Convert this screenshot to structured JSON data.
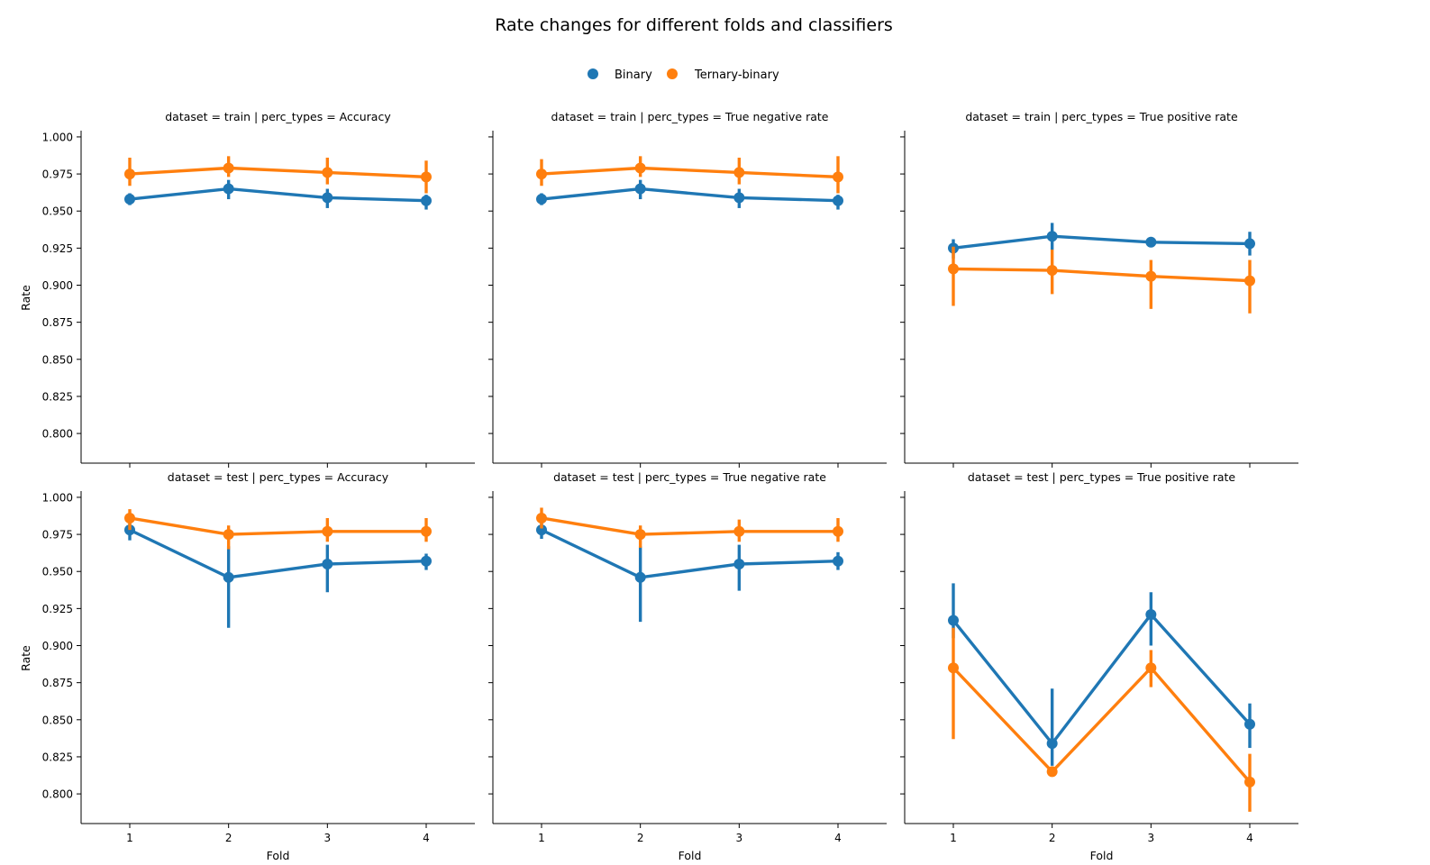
{
  "chart_data": {
    "type": "line",
    "title": "Rate changes for different folds and classifiers",
    "legend": {
      "placement": "top-center",
      "entries": [
        {
          "name": "Binary",
          "color": "#1f77b4"
        },
        {
          "name": "Ternary-binary",
          "color": "#ff7f0e"
        }
      ]
    },
    "xlabel": "Fold",
    "ylabel": "Rate",
    "x_ticks": [
      "1",
      "2",
      "3",
      "4"
    ],
    "y_ticks": [
      "0.800",
      "0.825",
      "0.850",
      "0.875",
      "0.900",
      "0.925",
      "0.950",
      "0.975",
      "1.000"
    ],
    "ylim": [
      0.78,
      1.003
    ],
    "grid": false,
    "panels": [
      {
        "title": "dataset = train | perc_types = Accuracy",
        "series": [
          {
            "name": "Binary",
            "values": [
              0.958,
              0.965,
              0.959,
              0.957
            ],
            "ci_low": [
              0.954,
              0.958,
              0.952,
              0.951
            ],
            "ci_high": [
              0.962,
              0.971,
              0.965,
              0.961
            ]
          },
          {
            "name": "Ternary-binary",
            "values": [
              0.975,
              0.979,
              0.976,
              0.973
            ],
            "ci_low": [
              0.967,
              0.973,
              0.968,
              0.962
            ],
            "ci_high": [
              0.986,
              0.987,
              0.986,
              0.984
            ]
          }
        ]
      },
      {
        "title": "dataset = train | perc_types = True negative rate",
        "series": [
          {
            "name": "Binary",
            "values": [
              0.958,
              0.965,
              0.959,
              0.957
            ],
            "ci_low": [
              0.954,
              0.958,
              0.952,
              0.951
            ],
            "ci_high": [
              0.962,
              0.971,
              0.965,
              0.961
            ]
          },
          {
            "name": "Ternary-binary",
            "values": [
              0.975,
              0.979,
              0.976,
              0.973
            ],
            "ci_low": [
              0.967,
              0.973,
              0.968,
              0.962
            ],
            "ci_high": [
              0.985,
              0.987,
              0.986,
              0.987
            ]
          }
        ]
      },
      {
        "title": "dataset = train | perc_types = True positive rate",
        "series": [
          {
            "name": "Binary",
            "values": [
              0.925,
              0.933,
              0.929,
              0.928
            ],
            "ci_low": [
              0.918,
              0.924,
              0.926,
              0.92
            ],
            "ci_high": [
              0.931,
              0.942,
              0.931,
              0.936
            ]
          },
          {
            "name": "Ternary-binary",
            "values": [
              0.911,
              0.91,
              0.906,
              0.903
            ],
            "ci_low": [
              0.886,
              0.894,
              0.884,
              0.881
            ],
            "ci_high": [
              0.926,
              0.924,
              0.917,
              0.917
            ]
          }
        ]
      },
      {
        "title": "dataset = test | perc_types = Accuracy",
        "series": [
          {
            "name": "Binary",
            "values": [
              0.978,
              0.946,
              0.955,
              0.957
            ],
            "ci_low": [
              0.971,
              0.912,
              0.936,
              0.951
            ],
            "ci_high": [
              0.984,
              0.967,
              0.968,
              0.962
            ]
          },
          {
            "name": "Ternary-binary",
            "values": [
              0.986,
              0.975,
              0.977,
              0.977
            ],
            "ci_low": [
              0.978,
              0.965,
              0.97,
              0.97
            ],
            "ci_high": [
              0.992,
              0.981,
              0.986,
              0.986
            ]
          }
        ]
      },
      {
        "title": "dataset = test | perc_types = True negative rate",
        "series": [
          {
            "name": "Binary",
            "values": [
              0.978,
              0.946,
              0.955,
              0.957
            ],
            "ci_low": [
              0.972,
              0.916,
              0.937,
              0.951
            ],
            "ci_high": [
              0.984,
              0.967,
              0.968,
              0.963
            ]
          },
          {
            "name": "Ternary-binary",
            "values": [
              0.986,
              0.975,
              0.977,
              0.977
            ],
            "ci_low": [
              0.979,
              0.966,
              0.97,
              0.97
            ],
            "ci_high": [
              0.993,
              0.981,
              0.985,
              0.986
            ]
          }
        ]
      },
      {
        "title": "dataset = test | perc_types = True positive rate",
        "series": [
          {
            "name": "Binary",
            "values": [
              0.917,
              0.834,
              0.921,
              0.847
            ],
            "ci_low": [
              0.905,
              0.819,
              0.9,
              0.831
            ],
            "ci_high": [
              0.942,
              0.871,
              0.936,
              0.861
            ]
          },
          {
            "name": "Ternary-binary",
            "values": [
              0.885,
              0.815,
              0.885,
              0.808
            ],
            "ci_low": [
              0.837,
              0.812,
              0.872,
              0.788
            ],
            "ci_high": [
              0.912,
              0.818,
              0.897,
              0.827
            ]
          }
        ]
      }
    ]
  }
}
